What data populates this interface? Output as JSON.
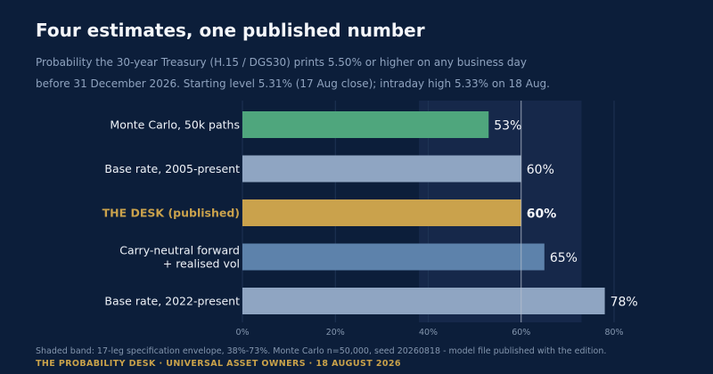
{
  "header": {
    "title": "Four estimates, one published number",
    "subtitle_line1": "Probability the 30-year Treasury (H.15 / DGS30) prints 5.50% or higher on any business day",
    "subtitle_line2": "before 31 December 2026.  Starting level 5.31% (17 Aug close); intraday high 5.33% on 18 Aug."
  },
  "chart_data": {
    "type": "bar",
    "orientation": "horizontal",
    "categories": [
      [
        "Monte Carlo, 50k paths"
      ],
      [
        "Base rate, 2005-present"
      ],
      [
        "THE DESK (published)"
      ],
      [
        "Carry-neutral forward",
        "+ realised vol"
      ],
      [
        "Base rate, 2022-present"
      ]
    ],
    "values": [
      53,
      60,
      60,
      65,
      78
    ],
    "value_labels": [
      "53%",
      "60%",
      "60%",
      "65%",
      "78%"
    ],
    "highlight_index": 2,
    "colors": [
      "#4fa67d",
      "#8fa5c2",
      "#caa24c",
      "#5d82ab",
      "#8fa5c2"
    ],
    "highlight_label_color": "#caa24c",
    "xlim": [
      0,
      80
    ],
    "xticks": [
      0,
      20,
      40,
      60,
      80
    ],
    "xtick_labels": [
      "0%",
      "20%",
      "40%",
      "60%",
      "80%"
    ],
    "shaded_band": [
      38,
      73
    ],
    "reference_line": 60,
    "grid": true
  },
  "footnote": "Shaded band: 17-leg specification envelope, 38%-73%.  Monte Carlo n=50,000, seed 20260818 - model file published with the edition.",
  "footer": "THE PROBABILITY DESK  ·  UNIVERSAL ASSET OWNERS  ·  18 AUGUST 2026"
}
